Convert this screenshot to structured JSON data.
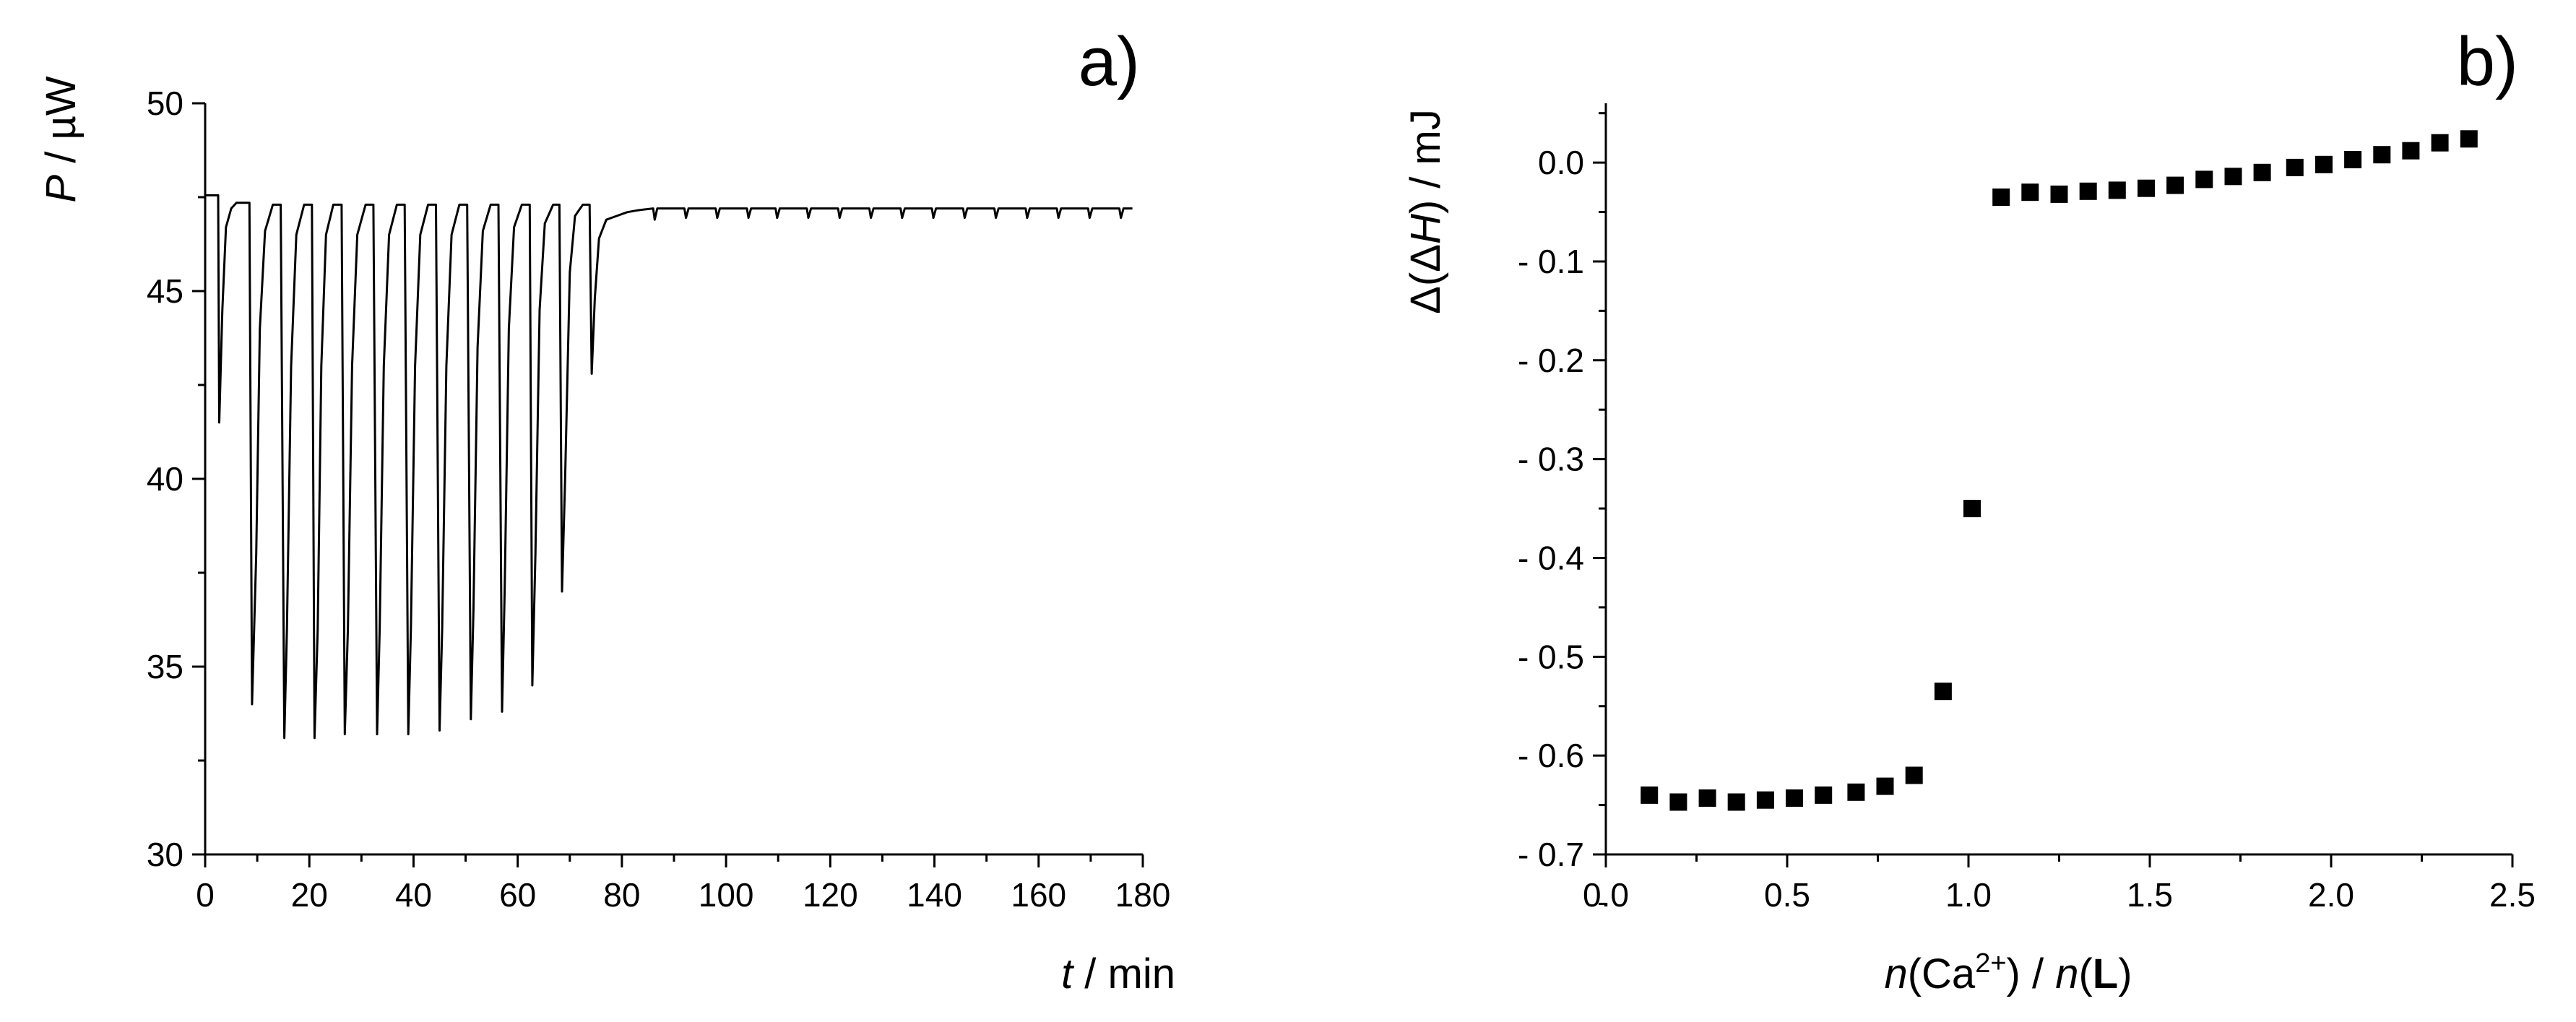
{
  "chart_data": [
    {
      "type": "line",
      "panel_label": "a)",
      "xlabel": {
        "var": "t",
        "unit": " / min"
      },
      "ylabel": {
        "var": "P",
        "unit": " / µW"
      },
      "xlim": [
        0,
        180
      ],
      "ylim": [
        30,
        50
      ],
      "xticks": [
        0,
        20,
        40,
        60,
        80,
        100,
        120,
        140,
        160,
        180
      ],
      "yticks": [
        30,
        35,
        40,
        45,
        50
      ],
      "baseline": 47.3,
      "series": [
        {
          "x": [
            0,
            2.5,
            2.7,
            3.3,
            4.0,
            5.0,
            6.0,
            8.5,
            9.0,
            9.8,
            10.5,
            11.5,
            13.0,
            14.5,
            15.2,
            15.7,
            16.5,
            17.5,
            19.0,
            20.5,
            21.0,
            21.6,
            22.3,
            23.2,
            24.6,
            26.2,
            26.8,
            27.4,
            28.2,
            29.2,
            30.8,
            32.3,
            33.0,
            33.5,
            34.3,
            35.3,
            36.8,
            38.3,
            39.0,
            39.5,
            40.3,
            41.3,
            42.8,
            44.3,
            45.0,
            45.5,
            46.3,
            47.3,
            48.8,
            50.3,
            51.0,
            51.5,
            52.3,
            53.3,
            54.8,
            56.3,
            57.0,
            57.5,
            58.3,
            59.3,
            60.8,
            62.3,
            62.8,
            63.4,
            64.2,
            65.2,
            66.8,
            68.0,
            68.5,
            69.1,
            70.0,
            71.0,
            72.5,
            73.8,
            74.2,
            74.8,
            75.6,
            77.0,
            79.0,
            81.0,
            83.0,
            86.0,
            86.3,
            86.8,
            90.0,
            92.0,
            92.3,
            92.8,
            97.0,
            98.0,
            98.3,
            98.8,
            104.0,
            104.3,
            104.8,
            109.5,
            109.8,
            110.3,
            115.5,
            115.8,
            116.3,
            121.5,
            121.8,
            122.3,
            127.5,
            127.8,
            128.3,
            133.5,
            133.8,
            134.3,
            139.5,
            139.8,
            140.3,
            145.5,
            145.8,
            146.3,
            151.5,
            151.8,
            152.3,
            157.5,
            157.8,
            158.3,
            163.5,
            163.8,
            164.3,
            169.5,
            169.8,
            170.3,
            175.5,
            175.8,
            176.3,
            178.0
          ],
          "y": [
            47.55,
            47.55,
            41.5,
            44.5,
            46.7,
            47.2,
            47.35,
            47.35,
            34.0,
            38.0,
            44.0,
            46.6,
            47.3,
            47.3,
            33.1,
            36.0,
            43.0,
            46.5,
            47.3,
            47.3,
            33.1,
            36.0,
            43.0,
            46.5,
            47.3,
            47.3,
            33.2,
            36.0,
            43.0,
            46.5,
            47.3,
            47.3,
            33.2,
            36.0,
            43.0,
            46.5,
            47.3,
            47.3,
            33.2,
            36.0,
            43.0,
            46.5,
            47.3,
            47.3,
            33.3,
            36.0,
            43.0,
            46.5,
            47.3,
            47.3,
            33.6,
            36.5,
            43.5,
            46.6,
            47.3,
            47.3,
            33.8,
            37.0,
            44.0,
            46.7,
            47.3,
            47.3,
            34.5,
            38.0,
            44.5,
            46.8,
            47.3,
            47.3,
            37.0,
            40.0,
            45.5,
            47.0,
            47.3,
            47.3,
            42.8,
            44.8,
            46.4,
            46.9,
            47.0,
            47.1,
            47.15,
            47.2,
            46.9,
            47.2,
            47.2,
            47.2,
            46.95,
            47.2,
            47.2,
            47.2,
            46.95,
            47.2,
            47.2,
            46.95,
            47.2,
            47.2,
            46.95,
            47.2,
            47.2,
            46.95,
            47.2,
            47.2,
            46.95,
            47.2,
            47.2,
            46.95,
            47.2,
            47.2,
            46.95,
            47.2,
            47.2,
            46.95,
            47.2,
            47.2,
            46.95,
            47.2,
            47.2,
            46.95,
            47.2,
            47.2,
            46.95,
            47.2,
            47.2,
            46.95,
            47.2,
            47.2,
            46.95,
            47.2,
            47.2,
            46.95,
            47.2,
            47.2
          ]
        }
      ]
    },
    {
      "type": "scatter",
      "panel_label": "b)",
      "xlabel": {
        "pre": "n",
        "mid1": "(Ca",
        "sup": "2+",
        "mid2": ") / ",
        "pre2": "n",
        "open": "(",
        "bold": "L",
        "close": ")"
      },
      "ylabel": {
        "pre": "Δ(Δ",
        "var": "H",
        "post": ") / mJ"
      },
      "xlim": [
        0.0,
        2.5
      ],
      "ylim": [
        -0.7,
        0.06
      ],
      "xticks": [
        0.0,
        0.5,
        1.0,
        1.5,
        2.0,
        2.5
      ],
      "xtick_labels": [
        "0.0",
        "0.5",
        "1.0",
        "1.5",
        "2.0",
        "2.5"
      ],
      "yticks": [
        0.0,
        -0.1,
        -0.2,
        -0.3,
        -0.4,
        -0.5,
        -0.6,
        -0.7
      ],
      "ytick_labels": [
        "0.0",
        "- 0.1",
        "- 0.2",
        "- 0.3",
        "- 0.4",
        "- 0.5",
        "- 0.6",
        "- 0.7"
      ],
      "series": [
        {
          "x": [
            0.12,
            0.2,
            0.28,
            0.36,
            0.44,
            0.52,
            0.6,
            0.69,
            0.77,
            0.85,
            0.93,
            1.01,
            1.09,
            1.17,
            1.25,
            1.33,
            1.41,
            1.49,
            1.57,
            1.65,
            1.73,
            1.81,
            1.9,
            1.98,
            2.06,
            2.14,
            2.22,
            2.3,
            2.38
          ],
          "y": [
            -0.64,
            -0.647,
            -0.643,
            -0.647,
            -0.645,
            -0.643,
            -0.64,
            -0.637,
            -0.631,
            -0.62,
            -0.535,
            -0.35,
            -0.035,
            -0.03,
            -0.032,
            -0.029,
            -0.028,
            -0.026,
            -0.023,
            -0.017,
            -0.014,
            -0.01,
            -0.005,
            -0.002,
            0.003,
            0.008,
            0.012,
            0.02,
            0.024
          ]
        }
      ]
    }
  ]
}
